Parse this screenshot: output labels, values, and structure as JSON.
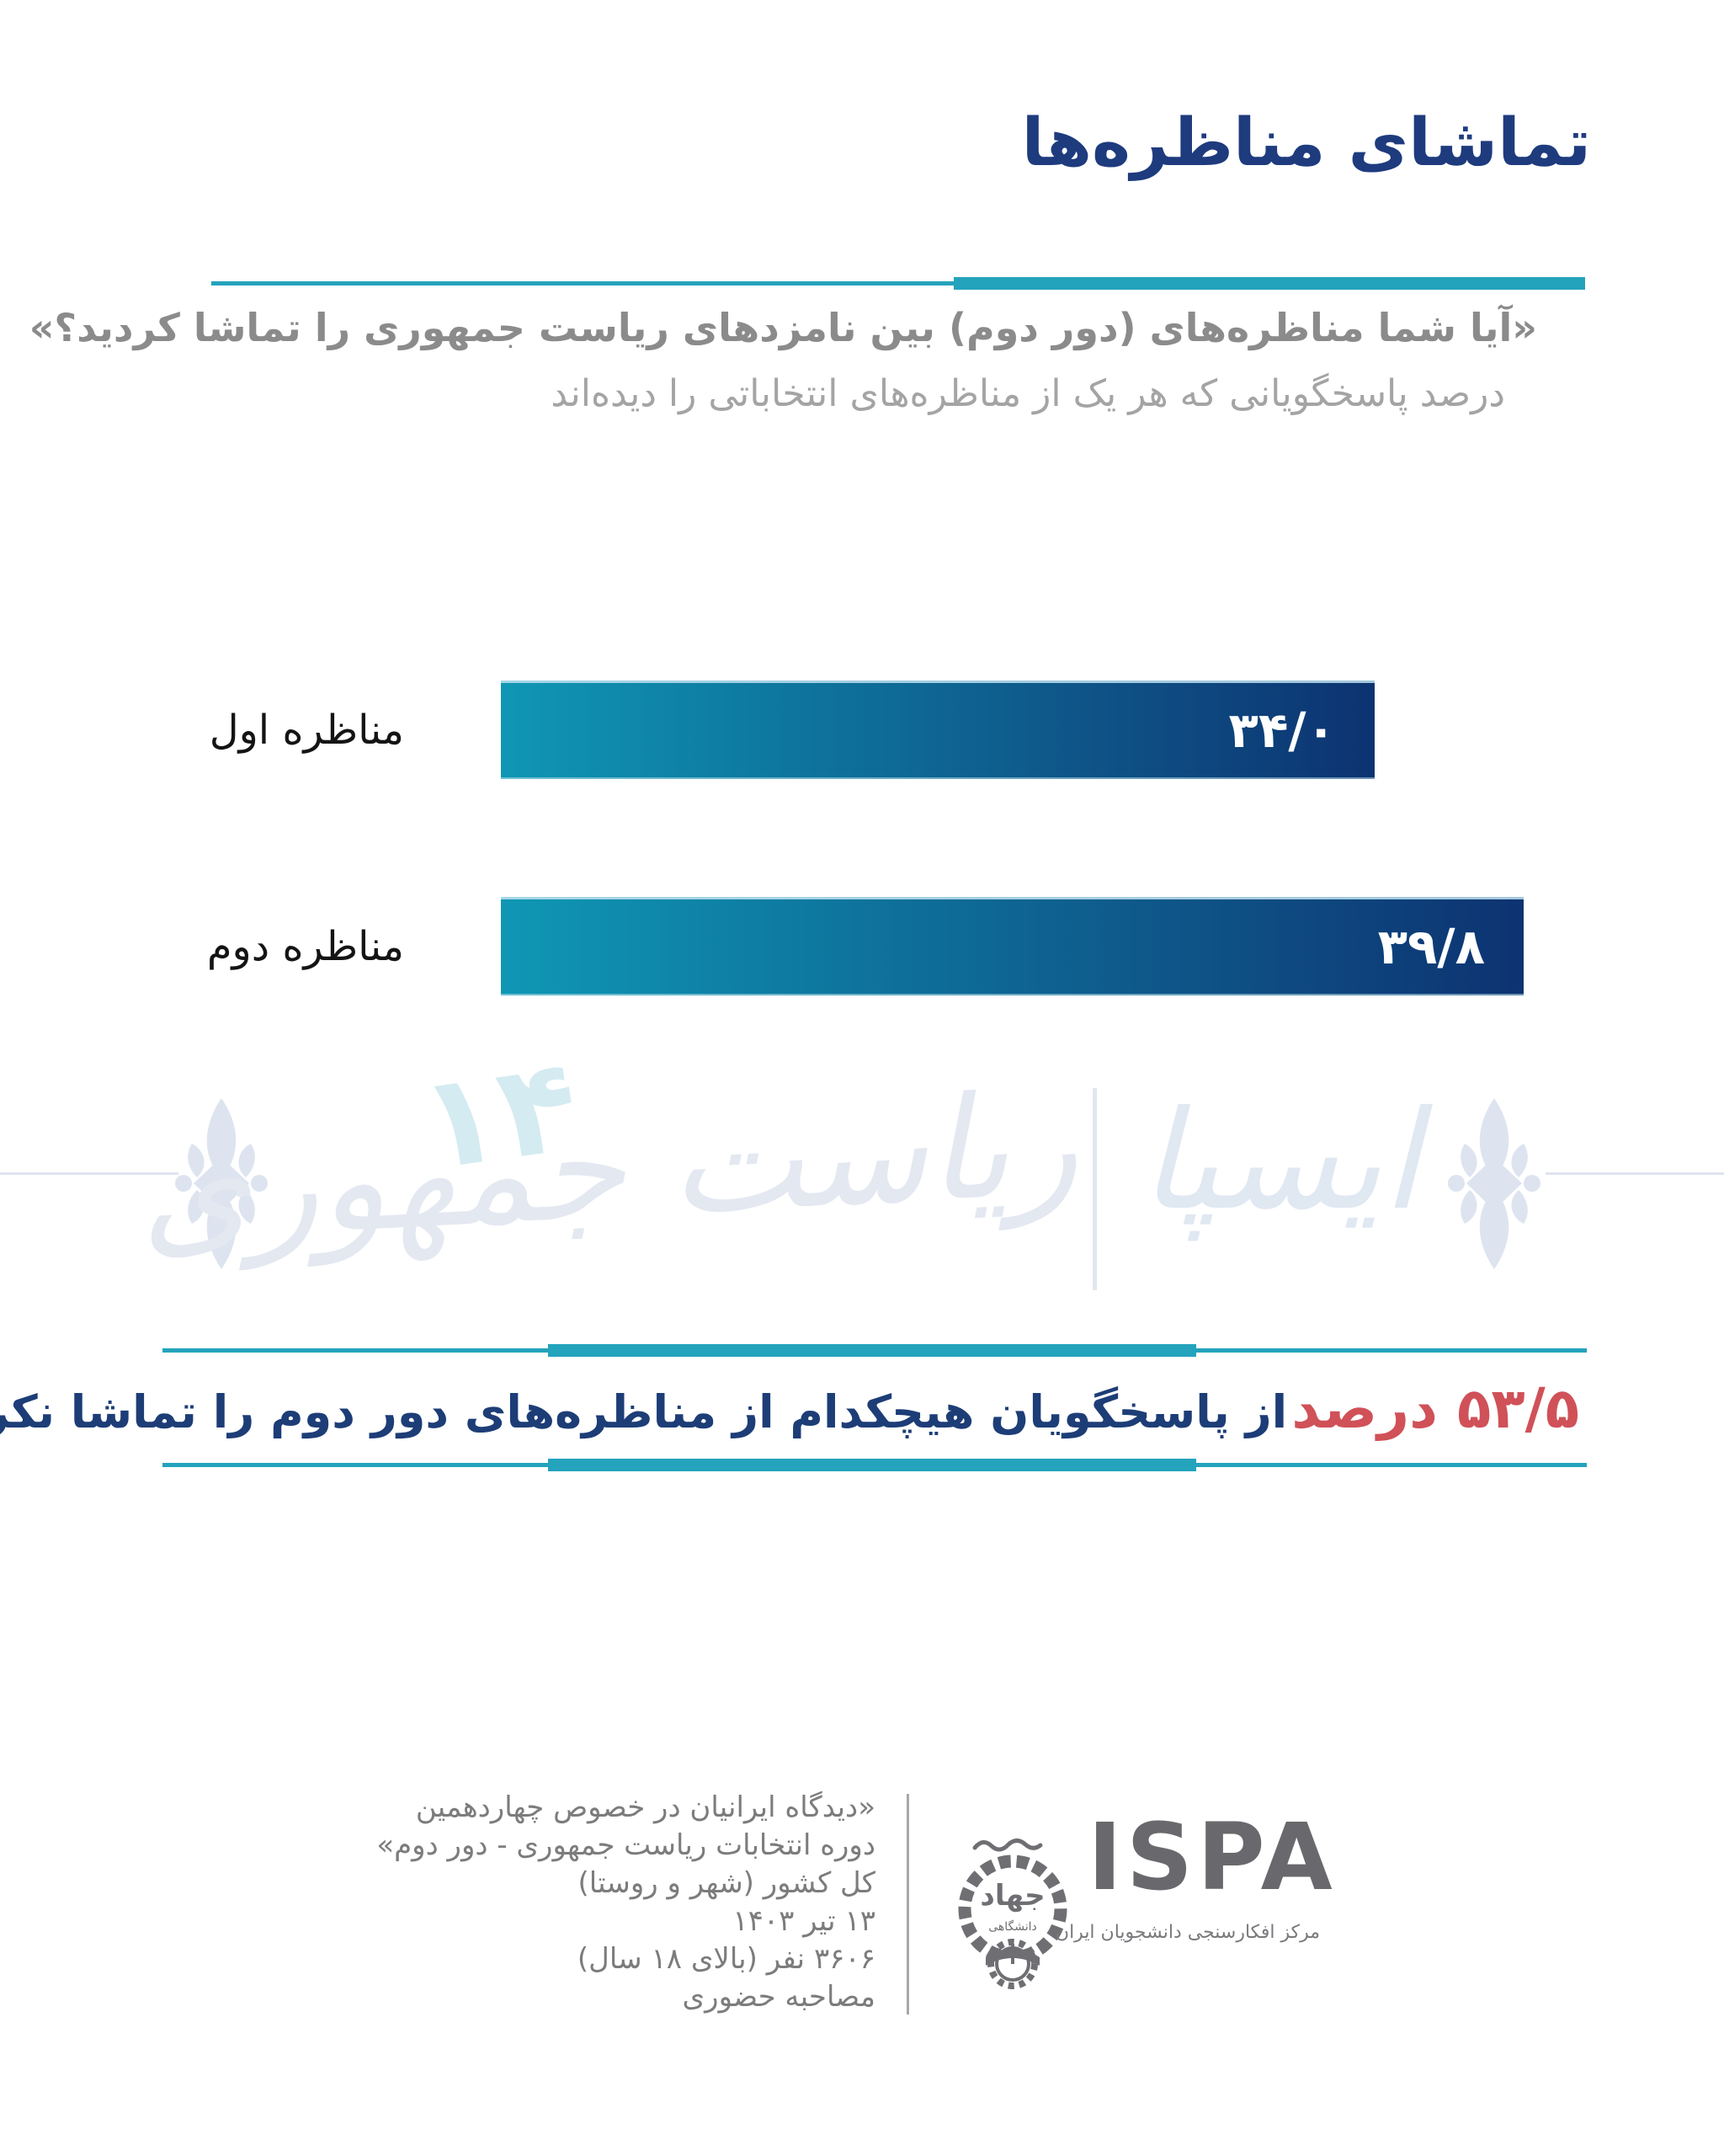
{
  "page": {
    "title": "تماشای مناظره‌ها",
    "question": "«آیا شما مناظره‌های (دور دوم) بین نامزدهای ریاست جمهوری را تماشا کردید؟»",
    "subtitle": "درصد پاسخگویانی که هر یک از مناظره‌های انتخاباتی را دیده‌اند"
  },
  "chart_data": {
    "type": "bar",
    "orientation": "horizontal",
    "title": "تماشای مناظره‌ها",
    "categories": [
      "مناظره اول",
      "مناظره دوم"
    ],
    "values": [
      34.0,
      39.8
    ],
    "value_labels": [
      "۳۴/۰",
      "۳۹/۸"
    ],
    "xlim": [
      0,
      39.8
    ],
    "grid": "off",
    "bar_gradient": [
      "#0f97b4",
      "#0d3371"
    ],
    "value_label_color": "#ffffff"
  },
  "callout": {
    "highlight": "۵۳/۵ درصد",
    "rest": "از پاسخگویان هیچکدام از مناظره‌های دور دوم را تماشا نکرده‌اند.",
    "highlight_color": "#d05158",
    "text_color": "#1d3d77"
  },
  "watermark": {
    "brand": "ایسپا",
    "separator": "|",
    "text": "ریاست جمهوری",
    "number": "۱۴"
  },
  "footer": {
    "source_lines": [
      "«دیدگاه ایرانیان در خصوص چهاردهمین",
      "دوره انتخابات ریاست جمهوری - دور دوم»",
      "کل کشور (شهر و روستا)",
      "۱۳ تیر ۱۴۰۳",
      "۳۶۰۶ نفر (بالای ۱۸ سال)",
      "مصاحبه حضوری"
    ],
    "logo": {
      "name": "ISPA",
      "subtitle": "مرکز افکارسنجی دانشجویان ایران",
      "emblem_top": "جهاد",
      "emblem_bottom": "دانشگاهی"
    }
  },
  "colors": {
    "accent_teal": "#24a3bc",
    "navy": "#1e3b7e",
    "red": "#d05158"
  }
}
